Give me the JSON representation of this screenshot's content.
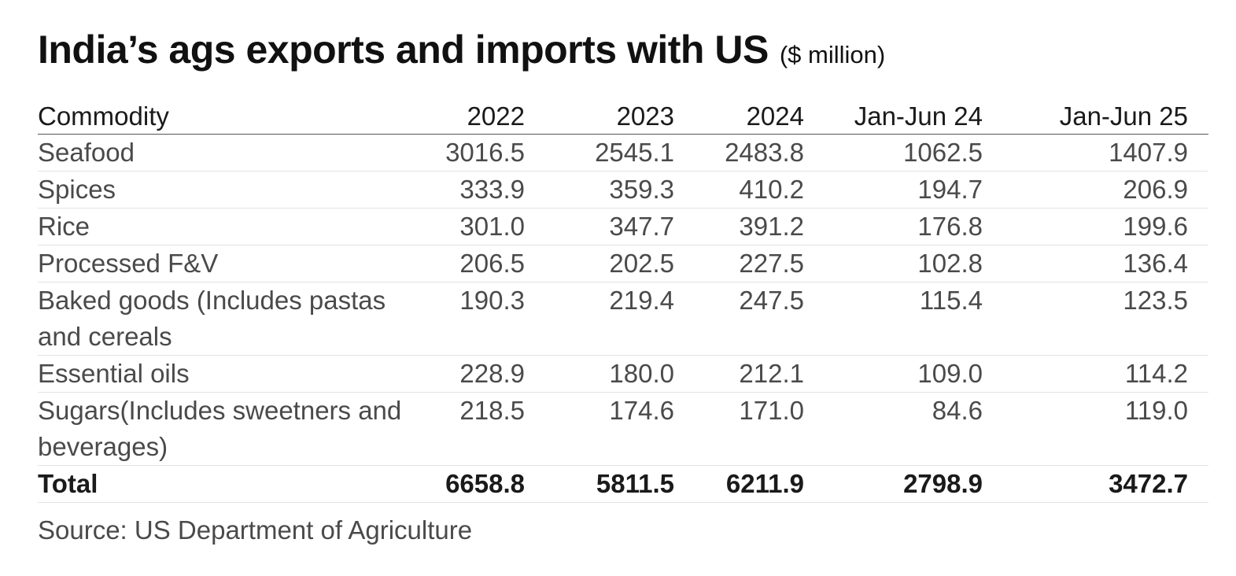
{
  "header": {
    "title": "India’s ags exports and imports with US",
    "unit": "($ million)"
  },
  "chart_data": {
    "type": "table",
    "title": "India’s ags exports and imports with US",
    "unit": "($ million)",
    "columns": [
      "Commodity",
      "2022",
      "2023",
      "2024",
      "Jan-Jun 24",
      "Jan-Jun 25"
    ],
    "rows": [
      {
        "commodity": "Seafood",
        "values": [
          "3016.5",
          "2545.1",
          "2483.8",
          "1062.5",
          "1407.9"
        ]
      },
      {
        "commodity": "Spices",
        "values": [
          "333.9",
          "359.3",
          "410.2",
          "194.7",
          "206.9"
        ]
      },
      {
        "commodity": "Rice",
        "values": [
          "301.0",
          "347.7",
          "391.2",
          "176.8",
          "199.6"
        ]
      },
      {
        "commodity": "Processed F&V",
        "values": [
          "206.5",
          "202.5",
          "227.5",
          "102.8",
          "136.4"
        ]
      },
      {
        "commodity": "Baked goods (Includes pastas and cereals",
        "values": [
          "190.3",
          "219.4",
          "247.5",
          "115.4",
          "123.5"
        ]
      },
      {
        "commodity": "Essential oils",
        "values": [
          "228.9",
          "180.0",
          "212.1",
          "109.0",
          "114.2"
        ]
      },
      {
        "commodity": "Sugars(Includes sweetners and beverages)",
        "values": [
          "218.5",
          "174.6",
          "171.0",
          "84.6",
          "119.0"
        ]
      }
    ],
    "total": {
      "label": "Total",
      "values": [
        "6658.8",
        "5811.5",
        "6211.9",
        "2798.9",
        "3472.7"
      ]
    }
  },
  "footer": {
    "source": "Source: US Department of Agriculture"
  }
}
